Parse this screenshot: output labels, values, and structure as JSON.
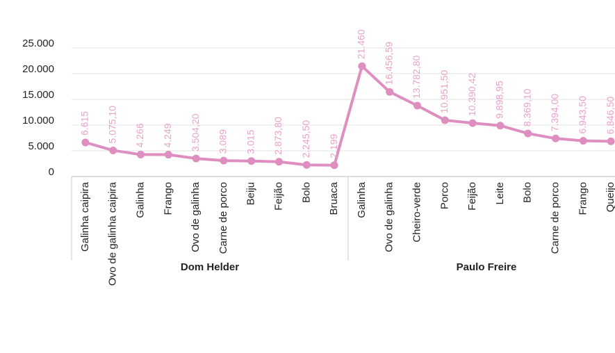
{
  "chart_data": {
    "type": "line",
    "groups": [
      {
        "name": "Dom Helder",
        "categories": [
          "Galinha caipira",
          "Ovo de galinha caipira",
          "Galinha",
          "Frango",
          "Ovo de galinha",
          "Carne de porco",
          "Beiju",
          "Feijão",
          "Bolo",
          "Bruaca"
        ]
      },
      {
        "name": "Paulo Freire",
        "categories": [
          "Galinha",
          "Ovo de galinha",
          "Cheiro-verde",
          "Porco",
          "Feijão",
          "Leite",
          "Bolo",
          "Carne de porco",
          "Frango",
          "Queijo"
        ]
      }
    ],
    "series": [
      {
        "color": "#de8fc0",
        "values": [
          6615,
          5075.1,
          4266,
          4249,
          3504.2,
          3089,
          3015,
          2873.8,
          2245.5,
          2199,
          21460,
          16456.59,
          13782.8,
          10951.5,
          10390.42,
          9898.95,
          8369.1,
          7394.0,
          6943.5,
          6846.5
        ],
        "value_labels": [
          "6.615",
          "5.075,10",
          "4.266",
          "4.249",
          "3.504,20",
          "3.089",
          "3.015",
          "2.873,80",
          "2.245,50",
          "2.199",
          "21.460",
          "16.456,59",
          "13.782,80",
          "10.951,50",
          "10.390,42",
          "9.898,95",
          "8.369,10",
          "7.394,00",
          "6.943,50",
          "6.846,50"
        ]
      }
    ],
    "ylim": [
      0,
      25000
    ],
    "yticks": [
      0,
      {
        "value": 5000,
        "label": "5.000"
      },
      {
        "value": 10000,
        "label": "10.000"
      },
      {
        "value": 15000,
        "label": "15.000"
      },
      {
        "value": 20000,
        "label": "20.000"
      },
      {
        "value": 25000,
        "label": "25.000"
      }
    ],
    "grid": true
  }
}
